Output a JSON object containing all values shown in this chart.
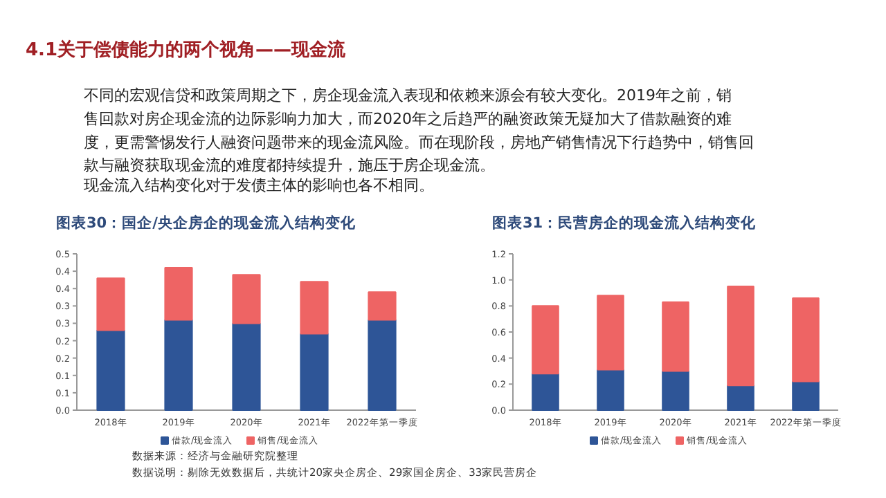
{
  "chart_data": [
    {
      "type": "other",
      "title": "4.1关于偿债能力的两个视角——现金流",
      "annotations": [
        "不同的宏观信贷和政策周期之下，房企现金流入表现和依赖来源会有较大变化。2019年之前，销售回款对房企现金流的边际影响力加大，而2020年之后趋严的融资政策无疑加大了借款融资的难度，更需警惕发行人融资问题带来的现金流风险。而在现阶段，房地产销售情况下行趋势中，销售回款与融资获取现金流的难度都持续提升，施压于房企现金流。",
        "现金流入结构变化对于发债主体的影响也各不相同。"
      ]
    },
    {
      "type": "bar",
      "title": "图表30：国企/央企房企的现金流入结构变化",
      "categories": [
        "2018年",
        "2019年",
        "2020年",
        "2021年",
        "2022年第一季度"
      ],
      "stacked": true,
      "legend": "bottom",
      "series": [
        {
          "name": "借款/现金流入",
          "color": "#2e5597",
          "values": [
            0.23,
            0.26,
            0.25,
            0.22,
            0.26
          ]
        },
        {
          "name": "销售/现金流入",
          "color": "#ee6464",
          "values": [
            0.15,
            0.15,
            0.14,
            0.15,
            0.08
          ]
        }
      ],
      "ylim": [
        0,
        0.45
      ],
      "yticks": [
        {
          "value": 0,
          "label": "0.0"
        },
        {
          "value": 0.05,
          "label": "0.1"
        },
        0.1,
        {
          "value": 0.15,
          "label": "0.2"
        },
        0.2,
        {
          "value": 0.25,
          "label": "0.3"
        },
        0.3,
        {
          "value": 0.35,
          "label": "0.4"
        },
        0.4,
        {
          "value": 0.45,
          "label": "0.5"
        }
      ],
      "annotations": [
        "数据来源：经济与金融研究院整理",
        "数据说明：剔除无效数据后，共统计20家央企房企、29家国企房企、33家民营房企"
      ]
    },
    {
      "type": "bar",
      "title": "图表31：民营房企的现金流入结构变化",
      "categories": [
        "2018年",
        "2019年",
        "2020年",
        "2021年",
        "2022年第一季度"
      ],
      "stacked": true,
      "legend": "bottom",
      "series": [
        {
          "name": "借款/现金流入",
          "color": "#2e5597",
          "values": [
            0.28,
            0.31,
            0.3,
            0.19,
            0.22
          ]
        },
        {
          "name": "销售/现金流入",
          "color": "#ee6464",
          "values": [
            0.52,
            0.57,
            0.53,
            0.76,
            0.64
          ]
        }
      ],
      "ylim": [
        0,
        1.2
      ],
      "yticks": [
        {
          "value": 0,
          "label": "0.0"
        },
        0.2,
        0.4,
        0.6,
        0.8,
        {
          "value": 1.0,
          "label": "1.0"
        },
        1.2
      ]
    }
  ]
}
